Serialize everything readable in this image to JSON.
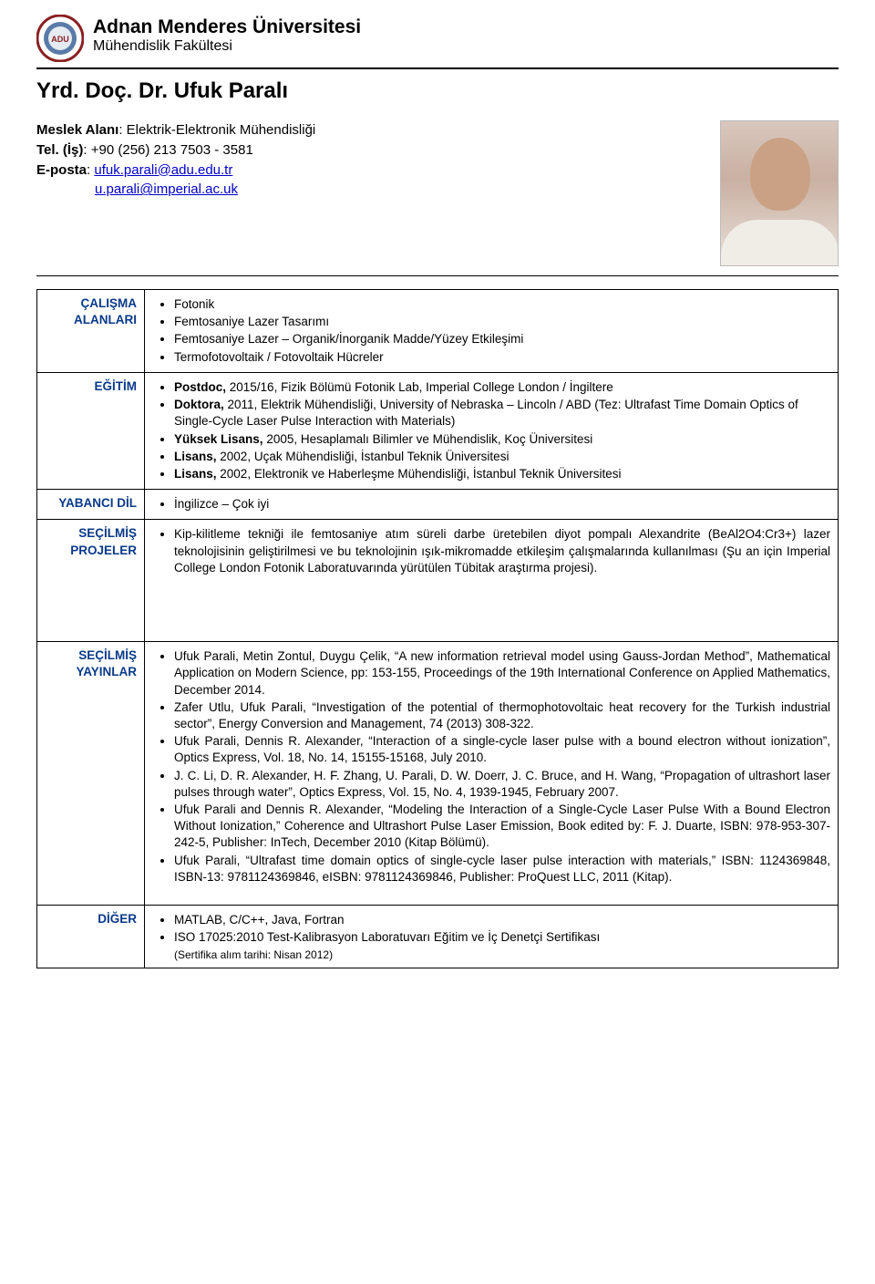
{
  "header": {
    "university": "Adnan Menderes Üniversitesi",
    "faculty": "Mühendislik Fakültesi"
  },
  "person": {
    "title_name": "Yrd. Doç. Dr. Ufuk Paralı",
    "field_label": "Meslek Alanı",
    "field_value": ": Elektrik-Elektronik Mühendisliği",
    "tel_label": "Tel. (İş)",
    "tel_value": ":  +90 (256) 213 7503 - 3581",
    "email_label": "E-posta",
    "email1": "ufuk.parali@adu.edu.tr",
    "email2": "u.parali@imperial.ac.uk"
  },
  "sections": {
    "calisma": {
      "label": "ÇALIŞMA ALANLARI",
      "items": [
        "Fotonik",
        "Femtosaniye Lazer Tasarımı",
        "Femtosaniye Lazer – Organik/İnorganik Madde/Yüzey Etkileşimi",
        "Termofotovoltaik / Fotovoltaik Hücreler"
      ]
    },
    "egitim": {
      "label": "EĞİTİM",
      "items": [
        "<b>Postdoc,</b> 2015/16, Fizik Bölümü Fotonik Lab, Imperial College London / İngiltere",
        "<b>Doktora,</b> 2011, Elektrik Mühendisliği, University of Nebraska – Lincoln / ABD (Tez: Ultrafast Time Domain Optics of Single-Cycle Laser Pulse Interaction with Materials)",
        "<b>Yüksek Lisans,</b> 2005, Hesaplamalı Bilimler ve Mühendislik, Koç Üniversitesi",
        "<b>Lisans,</b> 2002, Uçak Mühendisliği, İstanbul Teknik Üniversitesi",
        "<b>Lisans,</b> 2002, Elektronik ve Haberleşme Mühendisliği, İstanbul Teknik Üniversitesi"
      ]
    },
    "yabanci": {
      "label": "YABANCI DİL",
      "items": [
        "İngilizce – Çok iyi"
      ]
    },
    "projeler": {
      "label": "SEÇİLMİŞ PROJELER",
      "items": [
        "Kip-kilitleme tekniği ile femtosaniye atım süreli darbe üretebilen diyot pompalı Alexandrite (BeAl2O4:Cr3+) lazer teknolojisinin geliştirilmesi ve bu teknolojinin ışık-mikromadde etkileşim çalışmalarında kullanılması (Şu an için Imperial College London Fotonik Laboratuvarında yürütülen Tübitak araştırma projesi)."
      ]
    },
    "yayinlar": {
      "label": "SEÇİLMİŞ YAYINLAR",
      "items": [
        "Ufuk Parali, Metin Zontul, Duygu Çelik, “A new information retrieval model using Gauss-Jordan Method”, Mathematical Application on Modern Science, pp: 153-155, Proceedings of the 19th International Conference on Applied Mathematics, December 2014.",
        "Zafer Utlu, Ufuk Parali, “Investigation of the potential of thermophotovoltaic heat recovery for the Turkish industrial sector”, Energy Conversion and Management, 74 (2013) 308-322.",
        "Ufuk Parali, Dennis R. Alexander, “Interaction of a single-cycle laser pulse with a bound electron without ionization”, Optics Express, Vol. 18, No. 14, 15155-15168, July 2010.",
        "J. C. Li, D. R. Alexander, H. F. Zhang, U. Parali, D. W. Doerr, J. C. Bruce, and H. Wang, “Propagation of ultrashort laser pulses through water”, Optics Express, Vol. 15, No. 4, 1939-1945, February 2007.",
        "Ufuk Parali and Dennis R. Alexander, “Modeling the Interaction of a Single-Cycle Laser Pulse With a Bound Electron Without Ionization,” Coherence and Ultrashort Pulse Laser Emission, Book edited by: F. J. Duarte, ISBN: 978-953-307-242-5, Publisher: InTech, December 2010 (Kitap Bölümü).",
        "Ufuk Parali, “Ultrafast time domain optics of single-cycle laser pulse interaction with materials,” ISBN: 1124369848, ISBN-13: 9781124369846, eISBN: 9781124369846, Publisher: ProQuest LLC, 2011 (Kitap)."
      ]
    },
    "diger": {
      "label": "DİĞER",
      "items": [
        "MATLAB, C/C++, Java, Fortran",
        "ISO 17025:2010 Test-Kalibrasyon Laboratuvarı Eğitim ve İç Denetçi Sertifikası"
      ],
      "note": "(Sertifika alım tarihi: Nisan 2012)"
    }
  },
  "colors": {
    "label_color": "#0a3a8a",
    "link_color": "#0000cc",
    "text": "#000000",
    "background": "#ffffff",
    "logo_ring": "#8a1f1f",
    "logo_inner": "#5a7aa8"
  }
}
